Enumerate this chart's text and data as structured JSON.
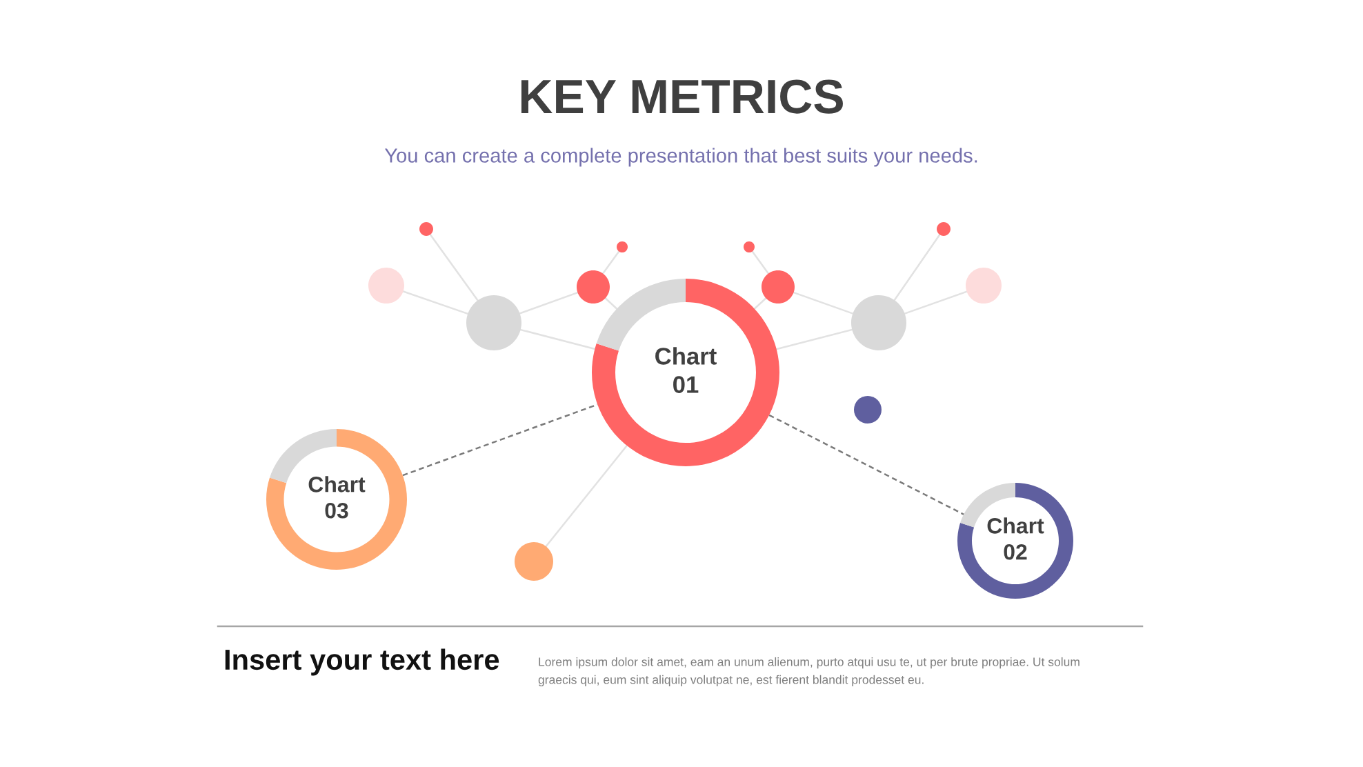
{
  "chart_data": [
    {
      "type": "other",
      "title": "KEY METRICS",
      "subtitle": "You can create a complete presentation that best suits your needs."
    },
    {
      "type": "donut",
      "title": "Chart 01",
      "categories": [
        null,
        null
      ],
      "values": [
        80,
        20
      ],
      "colors": [
        "#ff6464",
        "#d9d9d9"
      ]
    },
    {
      "type": "donut",
      "title": "Chart 03",
      "categories": [
        null,
        null
      ],
      "values": [
        80,
        20
      ],
      "colors": [
        "#ffaa73",
        "#d9d9d9"
      ]
    },
    {
      "type": "donut",
      "title": "Chart 02",
      "categories": [
        null,
        null
      ],
      "values": [
        80,
        20
      ],
      "colors": [
        "#5f5f9f",
        "#d9d9d9"
      ]
    },
    {
      "type": "other",
      "title": "Insert your text here",
      "annotations": [
        "Lorem ipsum dolor sit amet, eam an unum alienum, purto atqui usu te, ut per brute propriae. Ut solum\ngraecis qui, eum sint aliquip volutpat ne, est fierent blandit prodesset eu."
      ]
    }
  ]
}
